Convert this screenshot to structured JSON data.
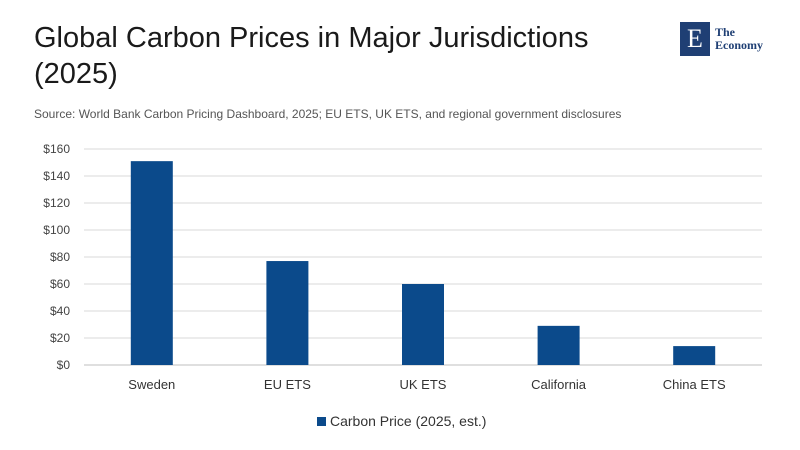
{
  "header": {
    "title": "Global Carbon Prices in Major Jurisdictions (2025)",
    "source": "Source: World Bank Carbon Pricing Dashboard, 2025; EU ETS, UK ETS, and regional government disclosures"
  },
  "logo": {
    "mark": "E",
    "line1": "The",
    "line2": "Economy"
  },
  "colors": {
    "bar": "#0b4a8b",
    "grid": "#d9d9d9",
    "logo": "#1f3f74"
  },
  "chart_data": {
    "type": "bar",
    "categories": [
      "Sweden",
      "EU ETS",
      "UK ETS",
      "California",
      "China ETS"
    ],
    "series": [
      {
        "name": "Carbon Price (2025, est.)",
        "values": [
          151,
          77,
          60,
          29,
          14
        ]
      }
    ],
    "ylim": [
      0,
      160
    ],
    "yticks": [
      0,
      20,
      40,
      60,
      80,
      100,
      120,
      140,
      160
    ],
    "ytick_prefix": "$",
    "grid": true,
    "legend": "bottom-center"
  }
}
